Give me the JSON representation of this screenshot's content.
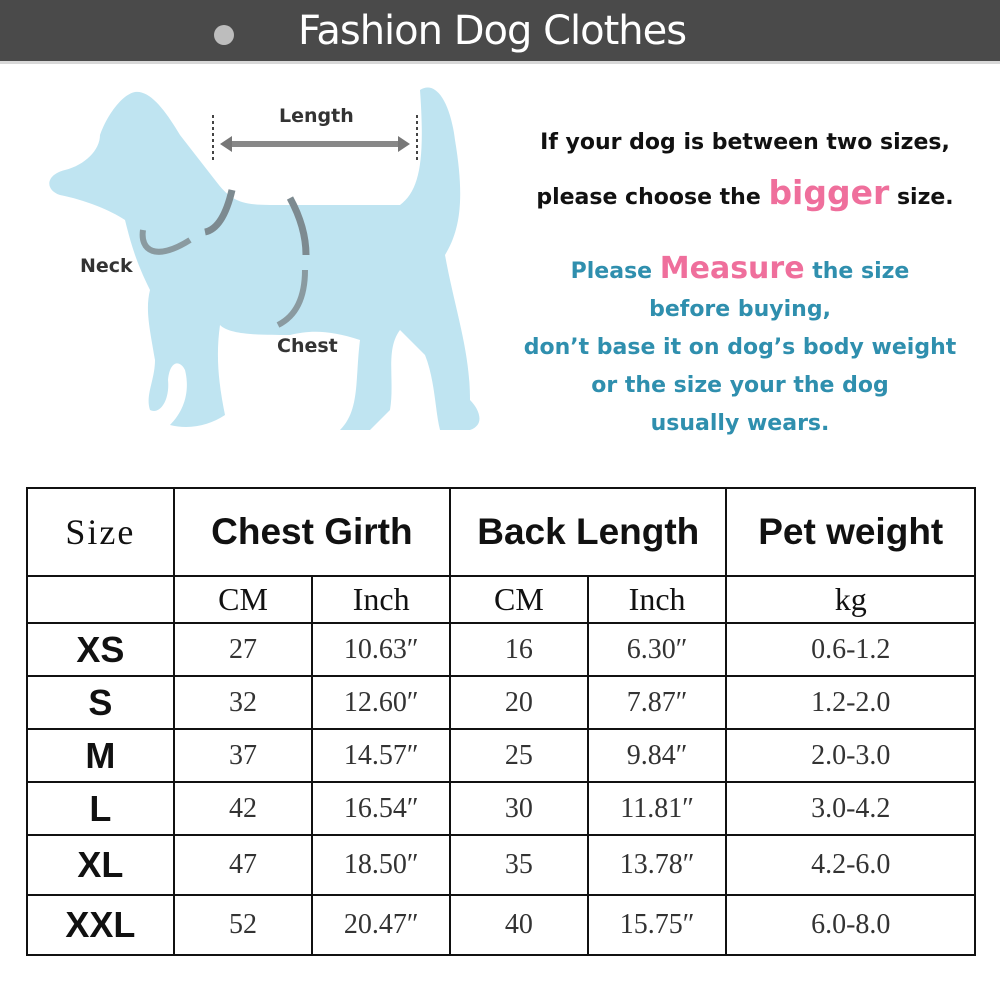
{
  "banner": {
    "title": "Fashion Dog Clothes"
  },
  "diagram": {
    "length_label": "Length",
    "neck_label": "Neck",
    "chest_label": "Chest"
  },
  "notes": {
    "line1": "If your dog is between two sizes,",
    "line2_pre": "please choose the ",
    "line2_emph": "bigger",
    "line2_post": " size.",
    "m1_pre": "Please ",
    "m1_emph": "Measure",
    "m1_post": " the size",
    "m2": "before buying,",
    "m3": "don’t base it on dog’s body weight",
    "m4": "or the size your the dog",
    "m5": "usually wears.",
    "accent_pink": "#ef6f9c",
    "accent_teal": "#2f8fae"
  },
  "table": {
    "headers": [
      "Size",
      "Chest Girth",
      "Back Length",
      "Pet weight"
    ],
    "units": [
      "CM",
      "Inch",
      "CM",
      "Inch",
      "kg"
    ],
    "rows": [
      [
        "XS",
        "27",
        "10.63″",
        "16",
        "6.30″",
        "0.6-1.2"
      ],
      [
        "S",
        "32",
        "12.60″",
        "20",
        "7.87″",
        "1.2-2.0"
      ],
      [
        "M",
        "37",
        "14.57″",
        "25",
        "9.84″",
        "2.0-3.0"
      ],
      [
        "L",
        "42",
        "16.54″",
        "30",
        "11.81″",
        "3.0-4.2"
      ],
      [
        "XL",
        "47",
        "18.50″",
        "35",
        "13.78″",
        "4.2-6.0"
      ],
      [
        "XXL",
        "52",
        "20.47″",
        "40",
        "15.75″",
        "6.0-8.0"
      ]
    ]
  }
}
